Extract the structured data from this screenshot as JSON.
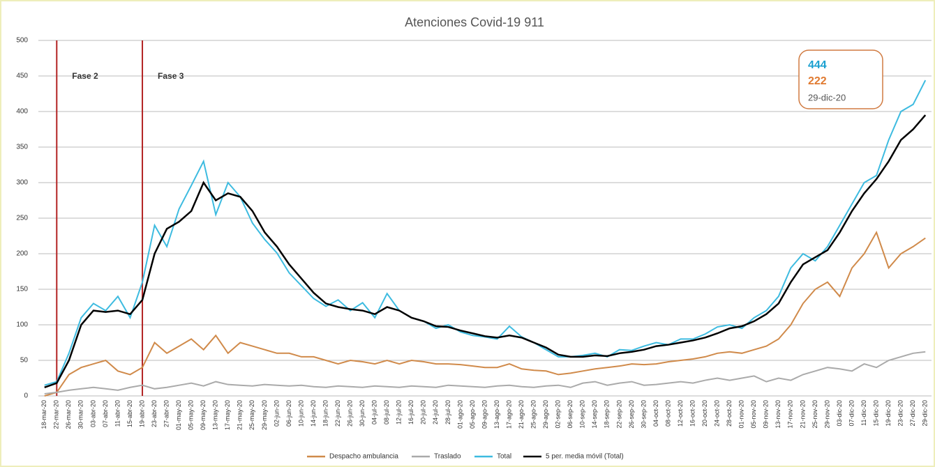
{
  "chart_data": {
    "type": "line",
    "title": "Atenciones Covid-19 911",
    "categories": [
      "18-mar-20",
      "22-mar-20",
      "26-mar-20",
      "30-mar-20",
      "03-abr-20",
      "07-abr-20",
      "11-abr-20",
      "15-abr-20",
      "19-abr-20",
      "23-abr-20",
      "27-abr-20",
      "01-may-20",
      "05-may-20",
      "09-may-20",
      "13-may-20",
      "17-may-20",
      "21-may-20",
      "25-may-20",
      "29-may-20",
      "02-jun-20",
      "06-jun-20",
      "10-jun-20",
      "14-jun-20",
      "18-jun-20",
      "22-jun-20",
      "26-jun-20",
      "30-jun-20",
      "04-jul-20",
      "08-jul-20",
      "12-jul-20",
      "16-jul-20",
      "20-jul-20",
      "24-jul-20",
      "28-jul-20",
      "01-ago-20",
      "05-ago-20",
      "09-ago-20",
      "13-ago-20",
      "17-ago-20",
      "21-ago-20",
      "25-ago-20",
      "29-ago-20",
      "02-sep-20",
      "06-sep-20",
      "10-sep-20",
      "14-sep-20",
      "18-sep-20",
      "22-sep-20",
      "26-sep-20",
      "30-sep-20",
      "04-oct-20",
      "08-oct-20",
      "12-oct-20",
      "16-oct-20",
      "20-oct-20",
      "24-oct-20",
      "28-oct-20",
      "01-nov-20",
      "05-nov-20",
      "09-nov-20",
      "13-nov-20",
      "17-nov-20",
      "21-nov-20",
      "25-nov-20",
      "29-nov-20",
      "03-dic-20",
      "07-dic-20",
      "11-dic-20",
      "15-dic-20",
      "19-dic-20",
      "23-dic-20",
      "27-dic-20",
      "29-dic-20"
    ],
    "series": [
      {
        "name": "Despacho ambulancia",
        "color": "#d08a4a",
        "width": 2,
        "values": [
          0,
          5,
          30,
          40,
          45,
          50,
          35,
          30,
          40,
          75,
          60,
          70,
          80,
          65,
          85,
          60,
          75,
          70,
          65,
          60,
          60,
          55,
          55,
          50,
          45,
          50,
          48,
          45,
          50,
          45,
          50,
          48,
          45,
          45,
          44,
          42,
          40,
          40,
          45,
          38,
          36,
          35,
          30,
          32,
          35,
          38,
          40,
          42,
          45,
          44,
          45,
          48,
          50,
          52,
          55,
          60,
          62,
          60,
          65,
          70,
          80,
          100,
          130,
          150,
          160,
          140,
          180,
          200,
          230,
          180,
          200,
          210,
          222
        ]
      },
      {
        "name": "Traslado",
        "color": "#aaaaaa",
        "width": 2,
        "values": [
          3,
          5,
          8,
          10,
          12,
          10,
          8,
          12,
          15,
          10,
          12,
          15,
          18,
          14,
          20,
          16,
          15,
          14,
          16,
          15,
          14,
          15,
          13,
          12,
          14,
          13,
          12,
          14,
          13,
          12,
          14,
          13,
          12,
          15,
          14,
          13,
          12,
          14,
          15,
          13,
          12,
          14,
          15,
          12,
          18,
          20,
          15,
          18,
          20,
          15,
          16,
          18,
          20,
          18,
          22,
          25,
          22,
          25,
          28,
          20,
          25,
          22,
          30,
          35,
          40,
          38,
          35,
          45,
          40,
          50,
          55,
          60,
          62
        ]
      },
      {
        "name": "Total",
        "color": "#3dbbe0",
        "width": 2,
        "values": [
          15,
          20,
          60,
          110,
          130,
          120,
          140,
          110,
          160,
          240,
          210,
          263,
          296,
          330,
          255,
          300,
          280,
          243,
          220,
          201,
          173,
          155,
          137,
          126,
          135,
          120,
          131,
          110,
          144,
          120,
          110,
          105,
          95,
          100,
          90,
          85,
          83,
          80,
          98,
          83,
          75,
          65,
          55,
          55,
          57,
          60,
          55,
          65,
          64,
          70,
          75,
          72,
          80,
          80,
          87,
          97,
          100,
          95,
          110,
          120,
          140,
          180,
          200,
          190,
          210,
          240,
          270,
          300,
          310,
          360,
          400,
          410,
          444
        ]
      },
      {
        "name": "5 per. media móvil (Total)",
        "color": "#000000",
        "width": 2.5,
        "values": [
          12,
          18,
          50,
          100,
          120,
          118,
          120,
          115,
          135,
          200,
          235,
          245,
          260,
          300,
          275,
          285,
          280,
          260,
          230,
          210,
          185,
          165,
          145,
          130,
          125,
          122,
          120,
          115,
          125,
          120,
          110,
          105,
          98,
          97,
          92,
          88,
          84,
          82,
          85,
          82,
          75,
          68,
          58,
          55,
          55,
          57,
          56,
          60,
          62,
          65,
          70,
          72,
          75,
          78,
          82,
          88,
          95,
          98,
          105,
          115,
          130,
          160,
          185,
          195,
          205,
          230,
          260,
          285,
          305,
          330,
          360,
          375,
          395
        ]
      }
    ],
    "ylim": [
      0,
      500
    ],
    "yticks": [
      0,
      50,
      100,
      150,
      200,
      250,
      300,
      350,
      400,
      450,
      500
    ],
    "grid": true,
    "legend": "bottom",
    "annotations": [
      {
        "label": "Fase 2",
        "x": "22-mar-20",
        "color": "#b22222"
      },
      {
        "label": "Fase 3",
        "x": "19-abr-20",
        "color": "#b22222"
      }
    ],
    "callout": {
      "total": 444,
      "ambulancia": 222,
      "date": "29-dic-20"
    }
  }
}
